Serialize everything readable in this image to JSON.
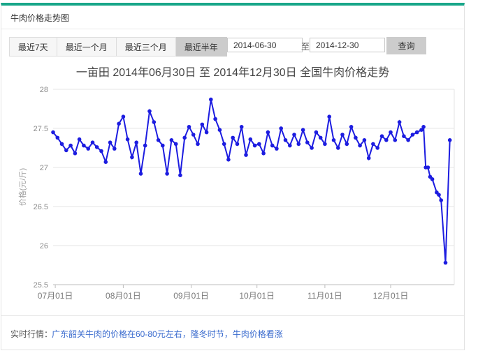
{
  "header": {
    "title": "牛肉价格走势图"
  },
  "toolbar": {
    "range_buttons": [
      {
        "label": "最近7天",
        "active": false
      },
      {
        "label": "最近一个月",
        "active": false
      },
      {
        "label": "最近三个月",
        "active": false
      },
      {
        "label": "最近半年",
        "active": true
      }
    ],
    "date_from": "2014-06-30",
    "date_separator": "至",
    "date_to": "2014-12-30",
    "query_label": "查询"
  },
  "chart_data": {
    "type": "line",
    "title": "一亩田 2014年06月30日 至 2014年12月30日 全国牛肉价格走势",
    "ylabel": "价格(元/斤)",
    "ylim": [
      25.5,
      28
    ],
    "yticks": [
      "28",
      "27.5",
      "27",
      "26.5",
      "26",
      "25.5"
    ],
    "xticks": [
      {
        "date": "2014-07-01",
        "label": "07月01日"
      },
      {
        "date": "2014-08-01",
        "label": "08月01日"
      },
      {
        "date": "2014-09-01",
        "label": "09月01日"
      },
      {
        "date": "2014-10-01",
        "label": "10月01日"
      },
      {
        "date": "2014-11-01",
        "label": "11月01日"
      },
      {
        "date": "2014-12-01",
        "label": "12月01日"
      }
    ],
    "x_range": [
      "2014-06-30",
      "2014-12-30"
    ],
    "grid": true,
    "legend": "none",
    "line_color": "#1c1ce0",
    "x": [
      "2014-06-30",
      "2014-07-02",
      "2014-07-04",
      "2014-07-06",
      "2014-07-08",
      "2014-07-10",
      "2014-07-12",
      "2014-07-14",
      "2014-07-16",
      "2014-07-18",
      "2014-07-20",
      "2014-07-22",
      "2014-07-24",
      "2014-07-26",
      "2014-07-28",
      "2014-07-30",
      "2014-08-01",
      "2014-08-03",
      "2014-08-05",
      "2014-08-07",
      "2014-08-09",
      "2014-08-11",
      "2014-08-13",
      "2014-08-15",
      "2014-08-17",
      "2014-08-19",
      "2014-08-21",
      "2014-08-23",
      "2014-08-25",
      "2014-08-27",
      "2014-08-29",
      "2014-08-31",
      "2014-09-02",
      "2014-09-04",
      "2014-09-06",
      "2014-09-08",
      "2014-09-10",
      "2014-09-12",
      "2014-09-14",
      "2014-09-16",
      "2014-09-18",
      "2014-09-20",
      "2014-09-22",
      "2014-09-24",
      "2014-09-26",
      "2014-09-28",
      "2014-09-30",
      "2014-10-02",
      "2014-10-04",
      "2014-10-06",
      "2014-10-08",
      "2014-10-10",
      "2014-10-12",
      "2014-10-14",
      "2014-10-16",
      "2014-10-18",
      "2014-10-20",
      "2014-10-22",
      "2014-10-24",
      "2014-10-26",
      "2014-10-28",
      "2014-10-30",
      "2014-11-01",
      "2014-11-03",
      "2014-11-05",
      "2014-11-07",
      "2014-11-09",
      "2014-11-11",
      "2014-11-13",
      "2014-11-15",
      "2014-11-17",
      "2014-11-19",
      "2014-11-21",
      "2014-11-23",
      "2014-11-25",
      "2014-11-27",
      "2014-11-29",
      "2014-12-01",
      "2014-12-03",
      "2014-12-05",
      "2014-12-07",
      "2014-12-09",
      "2014-12-11",
      "2014-12-13",
      "2014-12-15",
      "2014-12-16",
      "2014-12-17",
      "2014-12-18",
      "2014-12-19",
      "2014-12-20",
      "2014-12-22",
      "2014-12-23",
      "2014-12-24",
      "2014-12-26",
      "2014-12-28"
    ],
    "values": [
      27.45,
      27.38,
      27.3,
      27.22,
      27.28,
      27.18,
      27.36,
      27.28,
      27.24,
      27.32,
      27.26,
      27.21,
      27.07,
      27.32,
      27.24,
      27.56,
      27.65,
      27.36,
      27.13,
      27.32,
      26.92,
      27.28,
      27.72,
      27.58,
      27.35,
      27.28,
      26.92,
      27.35,
      27.3,
      26.9,
      27.38,
      27.52,
      27.42,
      27.3,
      27.55,
      27.45,
      27.87,
      27.62,
      27.48,
      27.3,
      27.1,
      27.38,
      27.3,
      27.52,
      27.16,
      27.36,
      27.28,
      27.3,
      27.18,
      27.45,
      27.28,
      27.24,
      27.5,
      27.35,
      27.28,
      27.42,
      27.3,
      27.48,
      27.32,
      27.25,
      27.45,
      27.38,
      27.3,
      27.65,
      27.35,
      27.25,
      27.42,
      27.3,
      27.52,
      27.38,
      27.28,
      27.35,
      27.12,
      27.3,
      27.25,
      27.4,
      27.35,
      27.45,
      27.35,
      27.58,
      27.4,
      27.35,
      27.42,
      27.45,
      27.48,
      27.52,
      27.0,
      27.0,
      26.88,
      26.85,
      26.68,
      26.65,
      26.58,
      25.78,
      27.35
    ]
  },
  "footer": {
    "label": "实时行情：",
    "news": "广东韶关牛肉的价格在60-80元左右，隆冬时节，牛肉价格看涨"
  },
  "colors": {
    "accent_green": "#18a689",
    "line_blue": "#1c1ce0",
    "link_blue": "#3a6bce",
    "active_button_gray": "#cccccc"
  }
}
